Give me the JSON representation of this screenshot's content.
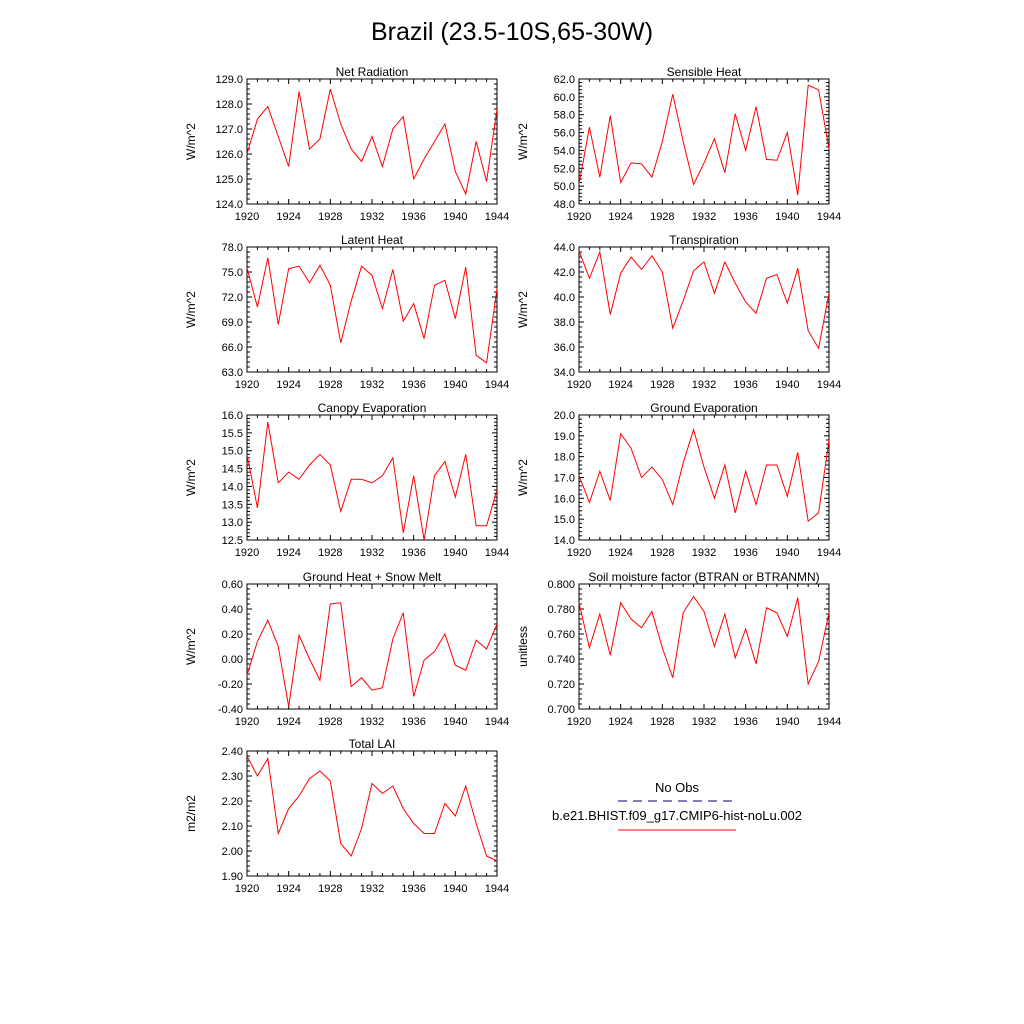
{
  "title": "Brazil (23.5-10S,65-30W)",
  "colors": {
    "series": "#ff0000",
    "obs": "#000080",
    "axis": "#000000"
  },
  "legend": {
    "obs_label": "No Obs",
    "model_label": "b.e21.BHIST.f09_g17.CMIP6-hist-noLu.002"
  },
  "chart_data": [
    {
      "type": "line",
      "title": "Net Radiation",
      "ylabel": "W/m^2",
      "xlim": [
        1920,
        1944
      ],
      "ylim": [
        124.0,
        129.0
      ],
      "xticks": [
        "1920",
        "1924",
        "1928",
        "1932",
        "1936",
        "1940",
        "1944"
      ],
      "yticks": [
        "124.0",
        "125.0",
        "126.0",
        "127.0",
        "128.0",
        "129.0"
      ],
      "x": [
        1920,
        1921,
        1922,
        1923,
        1924,
        1925,
        1926,
        1927,
        1928,
        1929,
        1930,
        1931,
        1932,
        1933,
        1934,
        1935,
        1936,
        1937,
        1938,
        1939,
        1940,
        1941,
        1942,
        1943,
        1944
      ],
      "values": [
        126.0,
        127.4,
        127.9,
        126.7,
        125.5,
        128.5,
        126.2,
        126.6,
        128.6,
        127.2,
        126.2,
        125.7,
        126.7,
        125.5,
        127.0,
        127.5,
        125.0,
        125.8,
        126.5,
        127.2,
        125.3,
        124.4,
        126.5,
        124.9,
        127.8
      ]
    },
    {
      "type": "line",
      "title": "Sensible Heat",
      "ylabel": "W/m^2",
      "xlim": [
        1920,
        1944
      ],
      "ylim": [
        48.0,
        62.0
      ],
      "xticks": [
        "1920",
        "1924",
        "1928",
        "1932",
        "1936",
        "1940",
        "1944"
      ],
      "yticks": [
        "48.0",
        "50.0",
        "52.0",
        "54.0",
        "56.0",
        "58.0",
        "60.0",
        "62.0"
      ],
      "x": [
        1920,
        1921,
        1922,
        1923,
        1924,
        1925,
        1926,
        1927,
        1928,
        1929,
        1930,
        1931,
        1932,
        1933,
        1934,
        1935,
        1936,
        1937,
        1938,
        1939,
        1940,
        1941,
        1942,
        1943,
        1944
      ],
      "values": [
        50.2,
        56.6,
        51.0,
        57.9,
        50.4,
        52.6,
        52.5,
        51.0,
        55.0,
        60.3,
        55.0,
        50.2,
        52.6,
        55.3,
        51.5,
        58.1,
        54.0,
        58.9,
        53.0,
        52.9,
        56.0,
        49.0,
        61.3,
        60.8,
        54.2
      ]
    },
    {
      "type": "line",
      "title": "Latent Heat",
      "ylabel": "W/m^2",
      "xlim": [
        1920,
        1944
      ],
      "ylim": [
        63.0,
        78.0
      ],
      "xticks": [
        "1920",
        "1924",
        "1928",
        "1932",
        "1936",
        "1940",
        "1944"
      ],
      "yticks": [
        "63.0",
        "66.0",
        "69.0",
        "72.0",
        "75.0",
        "78.0"
      ],
      "x": [
        1920,
        1921,
        1922,
        1923,
        1924,
        1925,
        1926,
        1927,
        1928,
        1929,
        1930,
        1931,
        1932,
        1933,
        1934,
        1935,
        1936,
        1937,
        1938,
        1939,
        1940,
        1941,
        1942,
        1943,
        1944
      ],
      "values": [
        75.5,
        70.8,
        76.7,
        68.7,
        75.4,
        75.7,
        73.7,
        75.8,
        73.4,
        66.5,
        71.5,
        75.7,
        74.6,
        70.6,
        75.3,
        69.1,
        71.2,
        67.0,
        73.4,
        74.0,
        69.4,
        75.6,
        65.0,
        64.1,
        73.0
      ]
    },
    {
      "type": "line",
      "title": "Transpiration",
      "ylabel": "W/m^2",
      "xlim": [
        1920,
        1944
      ],
      "ylim": [
        34.0,
        44.0
      ],
      "xticks": [
        "1920",
        "1924",
        "1928",
        "1932",
        "1936",
        "1940",
        "1944"
      ],
      "yticks": [
        "34.0",
        "36.0",
        "38.0",
        "40.0",
        "42.0",
        "44.0"
      ],
      "x": [
        1920,
        1921,
        1922,
        1923,
        1924,
        1925,
        1926,
        1927,
        1928,
        1929,
        1930,
        1931,
        1932,
        1933,
        1934,
        1935,
        1936,
        1937,
        1938,
        1939,
        1940,
        1941,
        1942,
        1943,
        1944
      ],
      "values": [
        43.7,
        41.5,
        43.6,
        38.6,
        41.9,
        43.2,
        42.2,
        43.3,
        42.0,
        37.5,
        39.7,
        42.1,
        42.8,
        40.3,
        42.8,
        41.1,
        39.6,
        38.7,
        41.5,
        41.8,
        39.5,
        42.3,
        37.3,
        35.9,
        40.3
      ]
    },
    {
      "type": "line",
      "title": "Canopy Evaporation",
      "ylabel": "W/m^2",
      "xlim": [
        1920,
        1944
      ],
      "ylim": [
        12.5,
        16.0
      ],
      "xticks": [
        "1920",
        "1924",
        "1928",
        "1932",
        "1936",
        "1940",
        "1944"
      ],
      "yticks": [
        "12.5",
        "13.0",
        "13.5",
        "14.0",
        "14.5",
        "15.0",
        "15.5",
        "16.0"
      ],
      "x": [
        1920,
        1921,
        1922,
        1923,
        1924,
        1925,
        1926,
        1927,
        1928,
        1929,
        1930,
        1931,
        1932,
        1933,
        1934,
        1935,
        1936,
        1937,
        1938,
        1939,
        1940,
        1941,
        1942,
        1943,
        1944
      ],
      "values": [
        14.9,
        13.4,
        15.8,
        14.1,
        14.4,
        14.2,
        14.6,
        14.9,
        14.6,
        13.3,
        14.2,
        14.2,
        14.1,
        14.3,
        14.8,
        12.7,
        14.3,
        12.5,
        14.3,
        14.7,
        13.7,
        14.9,
        12.9,
        12.9,
        13.9
      ]
    },
    {
      "type": "line",
      "title": "Ground Evaporation",
      "ylabel": "W/m^2",
      "xlim": [
        1920,
        1944
      ],
      "ylim": [
        14.0,
        20.0
      ],
      "xticks": [
        "1920",
        "1924",
        "1928",
        "1932",
        "1936",
        "1940",
        "1944"
      ],
      "yticks": [
        "14.0",
        "15.0",
        "16.0",
        "17.0",
        "18.0",
        "19.0",
        "20.0"
      ],
      "x": [
        1920,
        1921,
        1922,
        1923,
        1924,
        1925,
        1926,
        1927,
        1928,
        1929,
        1930,
        1931,
        1932,
        1933,
        1934,
        1935,
        1936,
        1937,
        1938,
        1939,
        1940,
        1941,
        1942,
        1943,
        1944
      ],
      "values": [
        17.1,
        15.8,
        17.3,
        15.9,
        19.1,
        18.4,
        17.0,
        17.5,
        16.9,
        15.7,
        17.7,
        19.3,
        17.5,
        16.0,
        17.6,
        15.3,
        17.3,
        15.7,
        17.6,
        17.6,
        16.1,
        18.2,
        14.9,
        15.3,
        18.8
      ]
    },
    {
      "type": "line",
      "title": "Ground Heat + Snow Melt",
      "ylabel": "W/m^2",
      "xlim": [
        1920,
        1944
      ],
      "ylim": [
        -0.4,
        0.6
      ],
      "xticks": [
        "1920",
        "1924",
        "1928",
        "1932",
        "1936",
        "1940",
        "1944"
      ],
      "yticks": [
        "-0.40",
        "-0.20",
        "0.00",
        "0.20",
        "0.40",
        "0.60"
      ],
      "x": [
        1920,
        1921,
        1922,
        1923,
        1924,
        1925,
        1926,
        1927,
        1928,
        1929,
        1930,
        1931,
        1932,
        1933,
        1934,
        1935,
        1936,
        1937,
        1938,
        1939,
        1940,
        1941,
        1942,
        1943,
        1944
      ],
      "values": [
        -0.13,
        0.14,
        0.31,
        0.1,
        -0.38,
        0.19,
        0.0,
        -0.17,
        0.44,
        0.45,
        -0.22,
        -0.15,
        -0.25,
        -0.23,
        0.16,
        0.37,
        -0.3,
        -0.01,
        0.06,
        0.2,
        -0.05,
        -0.09,
        0.15,
        0.08,
        0.28
      ]
    },
    {
      "type": "line",
      "title": "Soil moisture factor (BTRAN or BTRANMN)",
      "ylabel": "unitless",
      "xlim": [
        1920,
        1944
      ],
      "ylim": [
        0.7,
        0.8
      ],
      "xticks": [
        "1920",
        "1924",
        "1928",
        "1932",
        "1936",
        "1940",
        "1944"
      ],
      "yticks": [
        "0.700",
        "0.720",
        "0.740",
        "0.760",
        "0.780",
        "0.800"
      ],
      "x": [
        1920,
        1921,
        1922,
        1923,
        1924,
        1925,
        1926,
        1927,
        1928,
        1929,
        1930,
        1931,
        1932,
        1933,
        1934,
        1935,
        1936,
        1937,
        1938,
        1939,
        1940,
        1941,
        1942,
        1943,
        1944
      ],
      "values": [
        0.785,
        0.749,
        0.776,
        0.743,
        0.785,
        0.772,
        0.765,
        0.778,
        0.749,
        0.725,
        0.777,
        0.79,
        0.778,
        0.75,
        0.776,
        0.741,
        0.764,
        0.736,
        0.781,
        0.777,
        0.758,
        0.789,
        0.72,
        0.738,
        0.777
      ]
    },
    {
      "type": "line",
      "title": "Total LAI",
      "ylabel": "m2/m2",
      "xlim": [
        1920,
        1944
      ],
      "ylim": [
        1.9,
        2.4
      ],
      "xticks": [
        "1920",
        "1924",
        "1928",
        "1932",
        "1936",
        "1940",
        "1944"
      ],
      "yticks": [
        "1.90",
        "2.00",
        "2.10",
        "2.20",
        "2.30",
        "2.40"
      ],
      "x": [
        1920,
        1921,
        1922,
        1923,
        1924,
        1925,
        1926,
        1927,
        1928,
        1929,
        1930,
        1931,
        1932,
        1933,
        1934,
        1935,
        1936,
        1937,
        1938,
        1939,
        1940,
        1941,
        1942,
        1943,
        1944
      ],
      "values": [
        2.38,
        2.3,
        2.37,
        2.07,
        2.17,
        2.22,
        2.29,
        2.32,
        2.28,
        2.03,
        1.98,
        2.09,
        2.27,
        2.23,
        2.26,
        2.17,
        2.11,
        2.07,
        2.07,
        2.19,
        2.14,
        2.26,
        2.11,
        1.98,
        1.96
      ]
    }
  ]
}
